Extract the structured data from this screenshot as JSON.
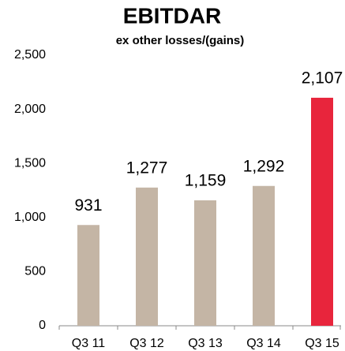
{
  "chart_data": {
    "type": "bar",
    "title": "EBITDAR",
    "subtitle": "ex other losses/(gains)",
    "categories": [
      "Q3 11",
      "Q3 12",
      "Q3 13",
      "Q3 14",
      "Q3 15"
    ],
    "values": [
      931,
      1277,
      1159,
      1292,
      2107
    ],
    "value_labels": [
      "931",
      "1,277",
      "1,159",
      "1,292",
      "2,107"
    ],
    "colors": [
      "#c4b5a5",
      "#c4b5a5",
      "#c4b5a5",
      "#c4b5a5",
      "#e8253c"
    ],
    "ylim": [
      0,
      2500
    ],
    "yticks": [
      0,
      500,
      {
        "value": 1000,
        "label": "1,000"
      },
      {
        "value": 1500,
        "label": "1,500"
      },
      {
        "value": 2000,
        "label": "2,000"
      },
      {
        "value": 2500,
        "label": "2,500"
      }
    ],
    "grid": false
  }
}
